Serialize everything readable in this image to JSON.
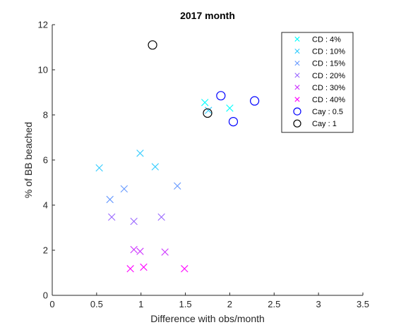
{
  "chart_data": {
    "type": "scatter",
    "title": "2017 month",
    "xlabel": "Difference with obs/month",
    "ylabel": "% of BB beached",
    "xlim": [
      0,
      3.5
    ],
    "ylim": [
      0,
      12
    ],
    "xticks": [
      "0",
      "0.5",
      "1",
      "1.5",
      "2",
      "2.5",
      "3",
      "3.5"
    ],
    "yticks": [
      "0",
      "2",
      "4",
      "6",
      "8",
      "10",
      "12"
    ],
    "grid": false,
    "legend_position": "top-right",
    "series": [
      {
        "name": "CD : 4%",
        "marker": "x",
        "color": "#00ffff",
        "x": [
          1.72,
          2.0
        ],
        "y": [
          8.55,
          8.3
        ]
      },
      {
        "name": "CD : 10%",
        "marker": "x",
        "color": "#33ccff",
        "x": [
          0.53,
          0.99,
          1.16,
          1.76
        ],
        "y": [
          5.65,
          6.3,
          5.7,
          8.2
        ]
      },
      {
        "name": "CD : 15%",
        "marker": "x",
        "color": "#6699ff",
        "x": [
          0.65,
          0.81,
          1.41
        ],
        "y": [
          4.25,
          4.72,
          4.85
        ]
      },
      {
        "name": "CD : 20%",
        "marker": "x",
        "color": "#9966ff",
        "x": [
          0.67,
          0.92,
          1.23
        ],
        "y": [
          3.47,
          3.28,
          3.47
        ]
      },
      {
        "name": "CD : 30%",
        "marker": "x",
        "color": "#cc33ff",
        "x": [
          0.92,
          0.99,
          1.27
        ],
        "y": [
          2.03,
          1.95,
          1.92
        ]
      },
      {
        "name": "CD : 40%",
        "marker": "x",
        "color": "#ff00ff",
        "x": [
          0.88,
          1.03,
          1.49
        ],
        "y": [
          1.18,
          1.25,
          1.18
        ]
      },
      {
        "name": "Cay : 0.5",
        "marker": "o",
        "color": "#0000ff",
        "x": [
          1.9,
          2.04,
          2.28
        ],
        "y": [
          8.85,
          7.7,
          8.62
        ]
      },
      {
        "name": "Cay : 1",
        "marker": "o",
        "color": "#000000",
        "x": [
          1.13,
          1.75
        ],
        "y": [
          11.1,
          8.08
        ]
      }
    ]
  }
}
